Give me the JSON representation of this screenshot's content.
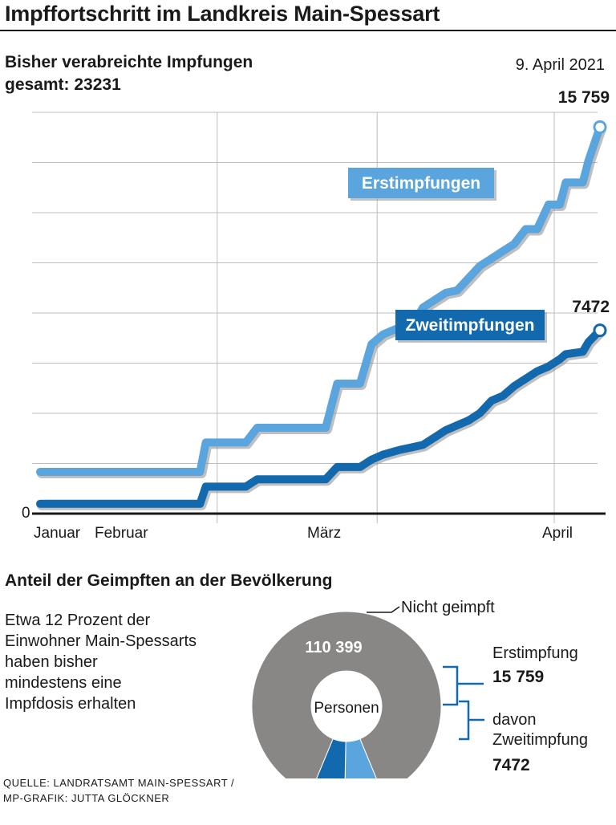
{
  "header": {
    "title": "Impffortschritt im Landkreis Main-Spessart"
  },
  "chart_section": {
    "subtitle_line1": "Bisher verabreichte Impfungen",
    "subtitle_line2": "gesamt: 23231",
    "date": "9. April 2021"
  },
  "chart_data": [
    {
      "type": "line",
      "x_axis": {
        "type": "date",
        "range": [
          "2021-01-01",
          "2021-04-09"
        ],
        "tick_labels": [
          "Januar",
          "Februar",
          "März",
          "April"
        ]
      },
      "y_axis": {
        "range": [
          0,
          16000
        ],
        "tick_labels": [
          "0"
        ],
        "grid": true
      },
      "series": [
        {
          "name": "Erstimpfungen",
          "color": "#5aa5dd",
          "end_label": "15 759",
          "points": [
            [
              "2021-01-01",
              1700
            ],
            [
              "2021-01-29",
              1700
            ],
            [
              "2021-01-30",
              2900
            ],
            [
              "2021-02-06",
              2900
            ],
            [
              "2021-02-08",
              3500
            ],
            [
              "2021-02-20",
              3500
            ],
            [
              "2021-02-22",
              5300
            ],
            [
              "2021-02-26",
              5300
            ],
            [
              "2021-02-28",
              6900
            ],
            [
              "2021-03-02",
              7300
            ],
            [
              "2021-03-05",
              7600
            ],
            [
              "2021-03-07",
              7600
            ],
            [
              "2021-03-09",
              8400
            ],
            [
              "2021-03-11",
              8700
            ],
            [
              "2021-03-13",
              9000
            ],
            [
              "2021-03-15",
              9100
            ],
            [
              "2021-03-17",
              9600
            ],
            [
              "2021-03-19",
              10100
            ],
            [
              "2021-03-21",
              10400
            ],
            [
              "2021-03-23",
              10700
            ],
            [
              "2021-03-25",
              11000
            ],
            [
              "2021-03-27",
              11600
            ],
            [
              "2021-03-29",
              11600
            ],
            [
              "2021-03-31",
              12600
            ],
            [
              "2021-04-02",
              12600
            ],
            [
              "2021-04-03",
              13500
            ],
            [
              "2021-04-06",
              13500
            ],
            [
              "2021-04-07",
              14400
            ],
            [
              "2021-04-09",
              15759
            ]
          ]
        },
        {
          "name": "Zweitimpfungen",
          "color": "#1369ad",
          "end_label": "7472",
          "points": [
            [
              "2021-01-01",
              400
            ],
            [
              "2021-01-29",
              400
            ],
            [
              "2021-01-30",
              1100
            ],
            [
              "2021-02-06",
              1100
            ],
            [
              "2021-02-08",
              1400
            ],
            [
              "2021-02-20",
              1400
            ],
            [
              "2021-02-22",
              1900
            ],
            [
              "2021-02-26",
              1900
            ],
            [
              "2021-02-28",
              2200
            ],
            [
              "2021-03-02",
              2400
            ],
            [
              "2021-03-05",
              2600
            ],
            [
              "2021-03-07",
              2700
            ],
            [
              "2021-03-09",
              2800
            ],
            [
              "2021-03-11",
              3100
            ],
            [
              "2021-03-13",
              3400
            ],
            [
              "2021-03-15",
              3600
            ],
            [
              "2021-03-17",
              3800
            ],
            [
              "2021-03-19",
              4100
            ],
            [
              "2021-03-21",
              4600
            ],
            [
              "2021-03-23",
              4800
            ],
            [
              "2021-03-25",
              5200
            ],
            [
              "2021-03-27",
              5500
            ],
            [
              "2021-03-29",
              5800
            ],
            [
              "2021-03-31",
              6000
            ],
            [
              "2021-04-02",
              6300
            ],
            [
              "2021-04-03",
              6500
            ],
            [
              "2021-04-06",
              6600
            ],
            [
              "2021-04-07",
              7000
            ],
            [
              "2021-04-09",
              7472
            ]
          ]
        }
      ]
    },
    {
      "type": "pie",
      "style": "donut",
      "center_label": "Personen",
      "slices": [
        {
          "name": "Nicht geimpft",
          "value": 110399,
          "label": "110 399",
          "color": "#888785"
        },
        {
          "name": "Erstimpfung",
          "value": 8287,
          "color": "#5aa5dd"
        },
        {
          "name": "davon Zweitimpfung",
          "value": 7472,
          "color": "#1369ad"
        }
      ],
      "annotations": {
        "not_vaccinated": "Nicht geimpft",
        "first_label": "Erstimpfung",
        "first_value": "15 759",
        "second_label_line1": "davon",
        "second_label_line2": "Zweitimpfung",
        "second_value": "7472"
      }
    }
  ],
  "pie_section": {
    "title": "Anteil der Geimpften an der Bevölkerung",
    "description_lines": [
      "Etwa 12 Prozent der",
      "Einwohner Main-Spessarts",
      "haben bisher",
      "mindestens eine",
      "Impfdosis erhalten"
    ]
  },
  "source": {
    "line1": "QUELLE: LANDRATSAMT MAIN-SPESSART /",
    "line2": "MP-GRAFIK: JUTTA GLÖCKNER"
  }
}
